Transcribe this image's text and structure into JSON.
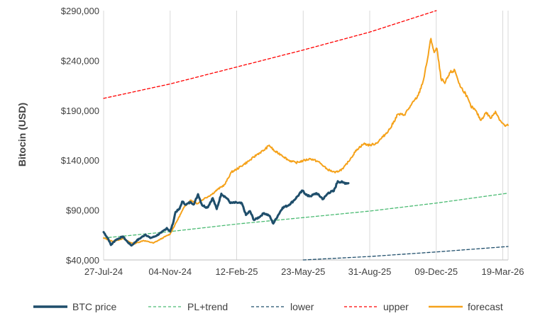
{
  "chart_data": {
    "type": "line",
    "title": "",
    "xlabel": "",
    "ylabel": "Bitocin (USD)",
    "ylim": [
      40000,
      290000
    ],
    "xlim": [
      "2024-07-27",
      "2026-03-27"
    ],
    "grid": "vertical",
    "legend_position": "bottom",
    "x_ticks": [
      "27-Jul-24",
      "04-Nov-24",
      "12-Feb-25",
      "23-May-25",
      "31-Aug-25",
      "09-Dec-25",
      "19-Mar-26"
    ],
    "x_tick_dates": [
      "2024-07-27",
      "2024-11-04",
      "2025-02-12",
      "2025-05-23",
      "2025-08-31",
      "2025-12-09",
      "2026-03-19"
    ],
    "y_ticks": [
      "$40,000",
      "$90,000",
      "$140,000",
      "$190,000",
      "$240,000",
      "$290,000"
    ],
    "y_tick_values": [
      40000,
      90000,
      140000,
      190000,
      240000,
      290000
    ],
    "series": [
      {
        "name": "BTC price",
        "color": "#1f4e6b",
        "style": "solid",
        "width": 3,
        "points": [
          [
            "2024-07-27",
            68000
          ],
          [
            "2024-08-03",
            61000
          ],
          [
            "2024-08-07",
            55000
          ],
          [
            "2024-08-14",
            60000
          ],
          [
            "2024-08-25",
            63500
          ],
          [
            "2024-09-01",
            58000
          ],
          [
            "2024-09-07",
            54500
          ],
          [
            "2024-09-15",
            59500
          ],
          [
            "2024-09-28",
            65500
          ],
          [
            "2024-10-05",
            62000
          ],
          [
            "2024-10-12",
            63500
          ],
          [
            "2024-10-22",
            67500
          ],
          [
            "2024-10-30",
            72000
          ],
          [
            "2024-11-04",
            68500
          ],
          [
            "2024-11-08",
            76000
          ],
          [
            "2024-11-12",
            88000
          ],
          [
            "2024-11-18",
            91000
          ],
          [
            "2024-11-22",
            98500
          ],
          [
            "2024-11-28",
            95500
          ],
          [
            "2024-12-05",
            98000
          ],
          [
            "2024-12-10",
            96000
          ],
          [
            "2024-12-16",
            106000
          ],
          [
            "2024-12-22",
            95000
          ],
          [
            "2024-12-30",
            92500
          ],
          [
            "2025-01-07",
            102000
          ],
          [
            "2025-01-13",
            91000
          ],
          [
            "2025-01-20",
            106500
          ],
          [
            "2025-01-28",
            102000
          ],
          [
            "2025-02-03",
            97000
          ],
          [
            "2025-02-12",
            97500
          ],
          [
            "2025-02-20",
            96500
          ],
          [
            "2025-02-26",
            85000
          ],
          [
            "2025-03-04",
            89000
          ],
          [
            "2025-03-10",
            80000
          ],
          [
            "2025-03-18",
            83000
          ],
          [
            "2025-03-25",
            87000
          ],
          [
            "2025-04-02",
            84500
          ],
          [
            "2025-04-08",
            76500
          ],
          [
            "2025-04-15",
            84500
          ],
          [
            "2025-04-22",
            92500
          ],
          [
            "2025-04-30",
            94500
          ],
          [
            "2025-05-08",
            99000
          ],
          [
            "2025-05-14",
            103500
          ],
          [
            "2025-05-22",
            109500
          ],
          [
            "2025-05-30",
            104000
          ],
          [
            "2025-06-05",
            104500
          ],
          [
            "2025-06-12",
            107000
          ],
          [
            "2025-06-22",
            101000
          ],
          [
            "2025-06-30",
            107500
          ],
          [
            "2025-07-08",
            109000
          ],
          [
            "2025-07-14",
            119000
          ],
          [
            "2025-07-22",
            117500
          ],
          [
            "2025-07-30",
            117000
          ]
        ]
      },
      {
        "name": "PL+trend",
        "color": "#4bbb73",
        "style": "dashed",
        "width": 1.3,
        "points": [
          [
            "2024-07-27",
            62000
          ],
          [
            "2024-11-04",
            68500
          ],
          [
            "2025-02-12",
            76000
          ],
          [
            "2025-05-23",
            82500
          ],
          [
            "2025-08-31",
            89000
          ],
          [
            "2025-12-09",
            97000
          ],
          [
            "2026-03-27",
            107000
          ]
        ]
      },
      {
        "name": "lower",
        "color": "#1f4e6b",
        "style": "dashed",
        "width": 1.3,
        "points": [
          [
            "2025-05-23",
            40000
          ],
          [
            "2025-08-31",
            43500
          ],
          [
            "2025-12-09",
            48000
          ],
          [
            "2026-03-27",
            53500
          ]
        ]
      },
      {
        "name": "upper",
        "color": "#ff0000",
        "style": "dashed",
        "width": 1.3,
        "points": [
          [
            "2024-07-27",
            202000
          ],
          [
            "2024-11-04",
            216500
          ],
          [
            "2025-02-12",
            233500
          ],
          [
            "2025-05-23",
            250500
          ],
          [
            "2025-08-31",
            268500
          ],
          [
            "2025-12-09",
            290000
          ]
        ]
      },
      {
        "name": "forecast",
        "color": "#f5a21b",
        "style": "solid",
        "width": 2,
        "points": [
          [
            "2024-07-27",
            62000
          ],
          [
            "2024-08-10",
            58500
          ],
          [
            "2024-08-25",
            61500
          ],
          [
            "2024-09-10",
            56000
          ],
          [
            "2024-09-25",
            59500
          ],
          [
            "2024-10-10",
            57000
          ],
          [
            "2024-10-25",
            62500
          ],
          [
            "2024-11-04",
            66000
          ],
          [
            "2024-11-15",
            80000
          ],
          [
            "2024-11-26",
            94000
          ],
          [
            "2024-12-05",
            100000
          ],
          [
            "2024-12-15",
            96500
          ],
          [
            "2024-12-25",
            101500
          ],
          [
            "2025-01-05",
            105500
          ],
          [
            "2025-01-15",
            111000
          ],
          [
            "2025-01-25",
            115500
          ],
          [
            "2025-02-04",
            128000
          ],
          [
            "2025-02-12",
            131000
          ],
          [
            "2025-02-22",
            135500
          ],
          [
            "2025-03-05",
            140500
          ],
          [
            "2025-03-15",
            146000
          ],
          [
            "2025-03-25",
            150000
          ],
          [
            "2025-04-02",
            155000
          ],
          [
            "2025-04-10",
            149000
          ],
          [
            "2025-04-20",
            145500
          ],
          [
            "2025-05-01",
            140000
          ],
          [
            "2025-05-12",
            137500
          ],
          [
            "2025-05-23",
            139500
          ],
          [
            "2025-06-03",
            141500
          ],
          [
            "2025-06-15",
            138500
          ],
          [
            "2025-06-28",
            131000
          ],
          [
            "2025-07-10",
            127500
          ],
          [
            "2025-07-22",
            131500
          ],
          [
            "2025-08-02",
            141500
          ],
          [
            "2025-08-12",
            151000
          ],
          [
            "2025-08-22",
            156500
          ],
          [
            "2025-08-31",
            155000
          ],
          [
            "2025-09-10",
            157000
          ],
          [
            "2025-09-20",
            163500
          ],
          [
            "2025-10-01",
            172000
          ],
          [
            "2025-10-12",
            186000
          ],
          [
            "2025-10-22",
            185500
          ],
          [
            "2025-11-01",
            195000
          ],
          [
            "2025-11-12",
            205000
          ],
          [
            "2025-11-20",
            221000
          ],
          [
            "2025-11-26",
            242000
          ],
          [
            "2025-12-01",
            262000
          ],
          [
            "2025-12-06",
            248000
          ],
          [
            "2025-12-10",
            252000
          ],
          [
            "2025-12-16",
            222000
          ],
          [
            "2025-12-22",
            217000
          ],
          [
            "2025-12-30",
            228000
          ],
          [
            "2026-01-06",
            230000
          ],
          [
            "2026-01-14",
            214000
          ],
          [
            "2026-01-22",
            207000
          ],
          [
            "2026-01-30",
            194000
          ],
          [
            "2026-02-06",
            190000
          ],
          [
            "2026-02-14",
            180000
          ],
          [
            "2026-02-22",
            188000
          ],
          [
            "2026-03-01",
            182000
          ],
          [
            "2026-03-08",
            189000
          ],
          [
            "2026-03-15",
            180000
          ],
          [
            "2026-03-22",
            174500
          ],
          [
            "2026-03-27",
            175000
          ]
        ]
      }
    ]
  }
}
